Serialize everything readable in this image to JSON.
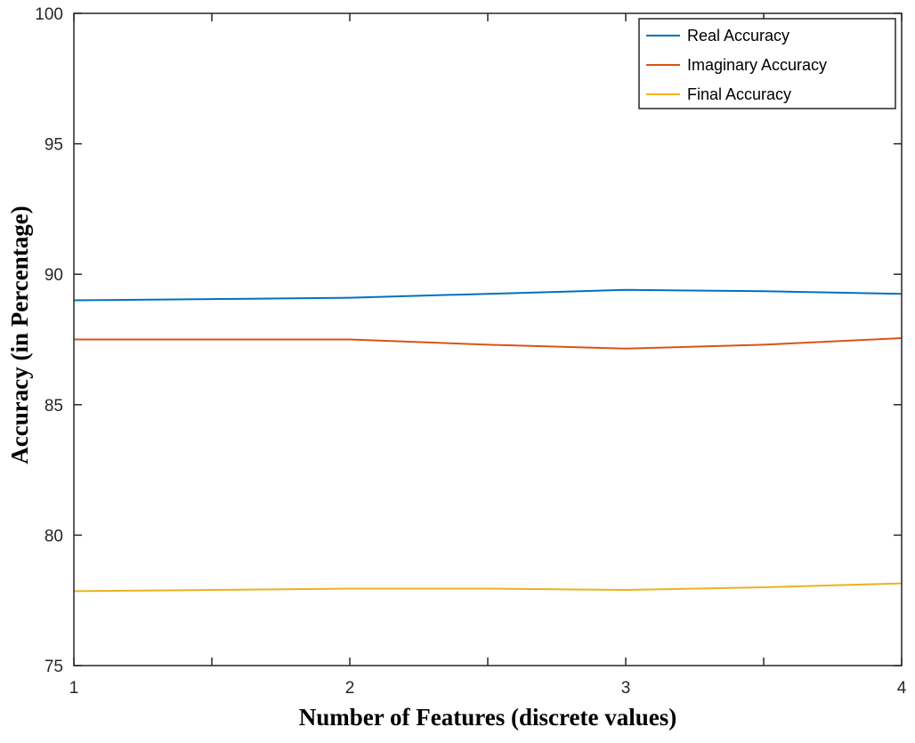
{
  "chart_data": {
    "type": "line",
    "xlabel": "Number of Features (discrete values)",
    "ylabel": "Accuracy (in Percentage)",
    "xlim": [
      1,
      4
    ],
    "ylim": [
      75,
      100
    ],
    "x_ticks": [
      1,
      2,
      3,
      4
    ],
    "y_ticks": [
      75,
      80,
      85,
      90,
      95,
      100
    ],
    "x_tick_labels": [
      "1",
      "2",
      "3",
      "4"
    ],
    "y_tick_labels": [
      "75",
      "80",
      "85",
      "90",
      "95",
      "100"
    ],
    "grid": false,
    "legend_position": "top-right",
    "series": [
      {
        "name": "Real Accuracy",
        "color": "#0072bd",
        "x": [
          1,
          1.5,
          2,
          2.5,
          3,
          3.5,
          4
        ],
        "y": [
          89.0,
          89.05,
          89.1,
          89.25,
          89.4,
          89.35,
          89.25
        ]
      },
      {
        "name": "Imaginary Accuracy",
        "color": "#d95319",
        "x": [
          1,
          1.5,
          2,
          2.5,
          3,
          3.5,
          4
        ],
        "y": [
          87.5,
          87.5,
          87.5,
          87.3,
          87.15,
          87.3,
          87.55
        ]
      },
      {
        "name": "Final Accuracy",
        "color": "#edb120",
        "x": [
          1,
          1.5,
          2,
          2.5,
          3,
          3.5,
          4
        ],
        "y": [
          77.85,
          77.9,
          77.95,
          77.95,
          77.9,
          78.0,
          78.15
        ]
      }
    ]
  }
}
